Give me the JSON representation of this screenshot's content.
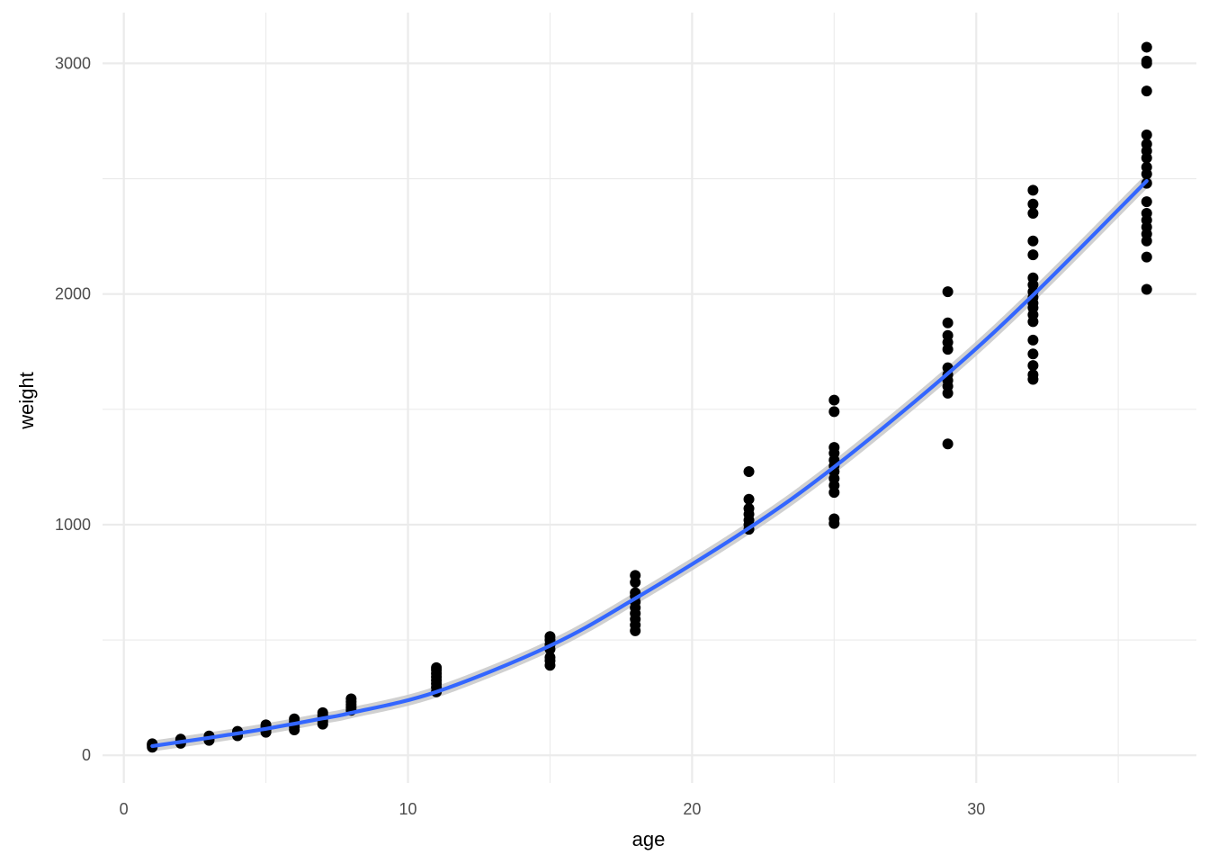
{
  "chart_data": {
    "type": "scatter",
    "xlabel": "age",
    "ylabel": "weight",
    "xlim": [
      -0.75,
      37.75
    ],
    "ylim": [
      -120,
      3220
    ],
    "x_ticks": [
      0,
      10,
      20,
      30
    ],
    "y_ticks": [
      0,
      1000,
      2000,
      3000
    ],
    "x_minor_ticks": [
      5,
      15,
      25,
      35
    ],
    "y_minor_ticks": [
      500,
      1500,
      2500
    ],
    "grid": true,
    "theme": "minimal",
    "colors": {
      "points": "#000000",
      "fit_line": "#3366ff",
      "confidence_band": "#c8c8c8",
      "grid": "#ebebeb"
    },
    "fit": {
      "type": "smooth",
      "x": [
        1,
        2,
        3,
        4,
        5,
        6,
        7,
        8,
        11,
        15,
        18,
        22,
        25,
        29,
        32,
        36
      ],
      "y": [
        40,
        58,
        76,
        95,
        115,
        137,
        160,
        184,
        275,
        475,
        680,
        985,
        1250,
        1655,
        1995,
        2490
      ]
    },
    "points": [
      {
        "x": 1,
        "y": 35
      },
      {
        "x": 1,
        "y": 42
      },
      {
        "x": 1,
        "y": 46
      },
      {
        "x": 1,
        "y": 50
      },
      {
        "x": 2,
        "y": 52
      },
      {
        "x": 2,
        "y": 58
      },
      {
        "x": 2,
        "y": 64
      },
      {
        "x": 2,
        "y": 70
      },
      {
        "x": 3,
        "y": 65
      },
      {
        "x": 3,
        "y": 72
      },
      {
        "x": 3,
        "y": 78
      },
      {
        "x": 3,
        "y": 84
      },
      {
        "x": 4,
        "y": 85
      },
      {
        "x": 4,
        "y": 92
      },
      {
        "x": 4,
        "y": 98
      },
      {
        "x": 4,
        "y": 104
      },
      {
        "x": 5,
        "y": 100
      },
      {
        "x": 5,
        "y": 108
      },
      {
        "x": 5,
        "y": 116
      },
      {
        "x": 5,
        "y": 124
      },
      {
        "x": 5,
        "y": 132
      },
      {
        "x": 6,
        "y": 110
      },
      {
        "x": 6,
        "y": 122
      },
      {
        "x": 6,
        "y": 134
      },
      {
        "x": 6,
        "y": 146
      },
      {
        "x": 6,
        "y": 158
      },
      {
        "x": 7,
        "y": 135
      },
      {
        "x": 7,
        "y": 148
      },
      {
        "x": 7,
        "y": 160
      },
      {
        "x": 7,
        "y": 172
      },
      {
        "x": 7,
        "y": 185
      },
      {
        "x": 8,
        "y": 195
      },
      {
        "x": 8,
        "y": 208
      },
      {
        "x": 8,
        "y": 220
      },
      {
        "x": 8,
        "y": 232
      },
      {
        "x": 8,
        "y": 245
      },
      {
        "x": 11,
        "y": 275
      },
      {
        "x": 11,
        "y": 295
      },
      {
        "x": 11,
        "y": 310
      },
      {
        "x": 11,
        "y": 325
      },
      {
        "x": 11,
        "y": 340
      },
      {
        "x": 11,
        "y": 355
      },
      {
        "x": 11,
        "y": 370
      },
      {
        "x": 11,
        "y": 380
      },
      {
        "x": 15,
        "y": 390
      },
      {
        "x": 15,
        "y": 410
      },
      {
        "x": 15,
        "y": 425
      },
      {
        "x": 15,
        "y": 460
      },
      {
        "x": 15,
        "y": 480
      },
      {
        "x": 15,
        "y": 500
      },
      {
        "x": 15,
        "y": 515
      },
      {
        "x": 18,
        "y": 540
      },
      {
        "x": 18,
        "y": 565
      },
      {
        "x": 18,
        "y": 590
      },
      {
        "x": 18,
        "y": 615
      },
      {
        "x": 18,
        "y": 640
      },
      {
        "x": 18,
        "y": 665
      },
      {
        "x": 18,
        "y": 690
      },
      {
        "x": 18,
        "y": 705
      },
      {
        "x": 18,
        "y": 750
      },
      {
        "x": 18,
        "y": 780
      },
      {
        "x": 22,
        "y": 980
      },
      {
        "x": 22,
        "y": 1000
      },
      {
        "x": 22,
        "y": 1020
      },
      {
        "x": 22,
        "y": 1045
      },
      {
        "x": 22,
        "y": 1070
      },
      {
        "x": 22,
        "y": 1110
      },
      {
        "x": 22,
        "y": 1230
      },
      {
        "x": 25,
        "y": 1005
      },
      {
        "x": 25,
        "y": 1025
      },
      {
        "x": 25,
        "y": 1140
      },
      {
        "x": 25,
        "y": 1170
      },
      {
        "x": 25,
        "y": 1200
      },
      {
        "x": 25,
        "y": 1230
      },
      {
        "x": 25,
        "y": 1255
      },
      {
        "x": 25,
        "y": 1280
      },
      {
        "x": 25,
        "y": 1310
      },
      {
        "x": 25,
        "y": 1335
      },
      {
        "x": 25,
        "y": 1490
      },
      {
        "x": 25,
        "y": 1540
      },
      {
        "x": 29,
        "y": 1350
      },
      {
        "x": 29,
        "y": 1570
      },
      {
        "x": 29,
        "y": 1600
      },
      {
        "x": 29,
        "y": 1625
      },
      {
        "x": 29,
        "y": 1650
      },
      {
        "x": 29,
        "y": 1680
      },
      {
        "x": 29,
        "y": 1760
      },
      {
        "x": 29,
        "y": 1790
      },
      {
        "x": 29,
        "y": 1820
      },
      {
        "x": 29,
        "y": 1875
      },
      {
        "x": 29,
        "y": 2010
      },
      {
        "x": 32,
        "y": 1630
      },
      {
        "x": 32,
        "y": 1650
      },
      {
        "x": 32,
        "y": 1690
      },
      {
        "x": 32,
        "y": 1740
      },
      {
        "x": 32,
        "y": 1800
      },
      {
        "x": 32,
        "y": 1880
      },
      {
        "x": 32,
        "y": 1910
      },
      {
        "x": 32,
        "y": 1940
      },
      {
        "x": 32,
        "y": 1960
      },
      {
        "x": 32,
        "y": 1985
      },
      {
        "x": 32,
        "y": 2010
      },
      {
        "x": 32,
        "y": 2040
      },
      {
        "x": 32,
        "y": 2070
      },
      {
        "x": 32,
        "y": 2170
      },
      {
        "x": 32,
        "y": 2230
      },
      {
        "x": 32,
        "y": 2350
      },
      {
        "x": 32,
        "y": 2390
      },
      {
        "x": 32,
        "y": 2450
      },
      {
        "x": 36,
        "y": 2020
      },
      {
        "x": 36,
        "y": 2160
      },
      {
        "x": 36,
        "y": 2230
      },
      {
        "x": 36,
        "y": 2260
      },
      {
        "x": 36,
        "y": 2290
      },
      {
        "x": 36,
        "y": 2320
      },
      {
        "x": 36,
        "y": 2350
      },
      {
        "x": 36,
        "y": 2400
      },
      {
        "x": 36,
        "y": 2480
      },
      {
        "x": 36,
        "y": 2520
      },
      {
        "x": 36,
        "y": 2550
      },
      {
        "x": 36,
        "y": 2590
      },
      {
        "x": 36,
        "y": 2620
      },
      {
        "x": 36,
        "y": 2650
      },
      {
        "x": 36,
        "y": 2690
      },
      {
        "x": 36,
        "y": 2880
      },
      {
        "x": 36,
        "y": 3000
      },
      {
        "x": 36,
        "y": 3010
      },
      {
        "x": 36,
        "y": 3070
      }
    ]
  }
}
